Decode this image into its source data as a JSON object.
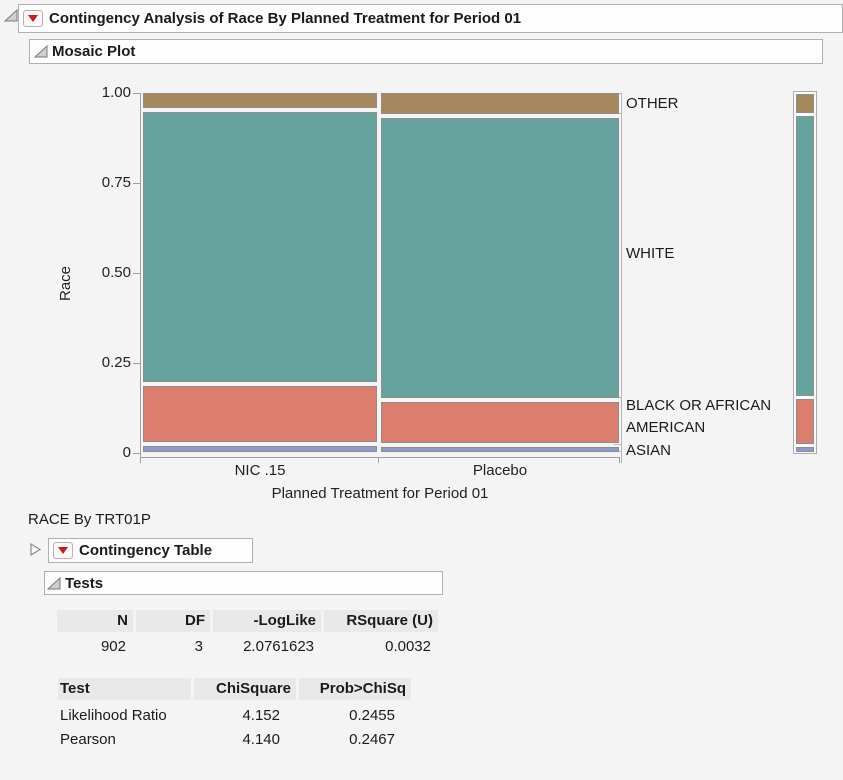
{
  "header": {
    "title": "Contingency Analysis of Race By Planned Treatment for Period 01"
  },
  "sections": {
    "mosaic_label": "Mosaic Plot",
    "contingency_label": "Contingency Table",
    "tests_label": "Tests"
  },
  "subtitle": "RACE By TRT01P",
  "chart_data": {
    "type": "mosaic",
    "title": "Mosaic Plot",
    "xlabel": "Planned Treatment for Period 01",
    "ylabel": "Race",
    "x_categories": [
      "NIC .15",
      "Placebo"
    ],
    "y_categories": [
      "OTHER",
      "WHITE",
      "BLACK OR AFRICAN AMERICAN",
      "ASIAN"
    ],
    "y_ticks": [
      "1.00",
      "0.75",
      "0.50",
      "0.25",
      "0"
    ],
    "ylim": [
      0,
      1
    ],
    "colors": {
      "OTHER": "#a5885c",
      "WHITE": "#66a39f",
      "BLACK OR AFRICAN AMERICAN": "#dc7e6e",
      "ASIAN": "#8b9ccc"
    },
    "columns": [
      {
        "category": "NIC .15",
        "width_share": 0.496,
        "segments": {
          "OTHER": 0.047,
          "WHITE": 0.76,
          "BLACK OR AFRICAN AMERICAN": 0.169,
          "ASIAN": 0.024
        }
      },
      {
        "category": "Placebo",
        "width_share": 0.504,
        "segments": {
          "OTHER": 0.065,
          "WHITE": 0.787,
          "BLACK OR AFRICAN AMERICAN": 0.127,
          "ASIAN": 0.021
        }
      }
    ],
    "overall": {
      "OTHER": 0.057,
      "WHITE": 0.791,
      "BLACK OR AFRICAN AMERICAN": 0.135,
      "ASIAN": 0.017
    }
  },
  "tests_summary": {
    "columns": [
      "N",
      "DF",
      "-LogLike",
      "RSquare (U)"
    ],
    "rows": [
      [
        "902",
        "3",
        "2.0761623",
        "0.0032"
      ]
    ]
  },
  "tests_table": {
    "columns": [
      "Test",
      "ChiSquare",
      "Prob>ChiSq"
    ],
    "rows": [
      [
        "Likelihood Ratio",
        "4.152",
        "0.2455"
      ],
      [
        "Pearson",
        "4.140",
        "0.2467"
      ]
    ]
  }
}
